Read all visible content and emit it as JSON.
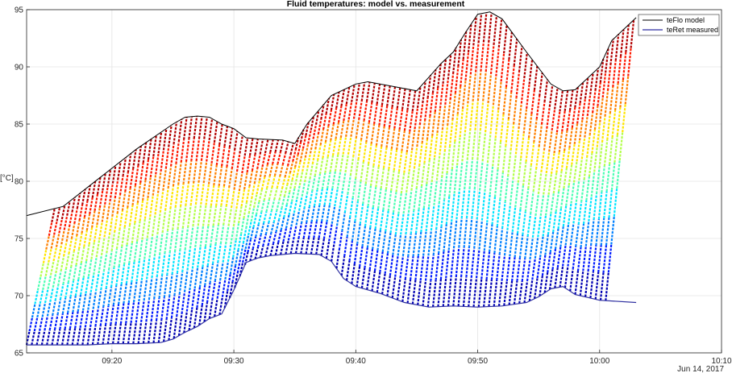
{
  "chart_data": {
    "type": "line",
    "title": "Fluid temperatures: model vs. measurement",
    "ylabel": "[°C]",
    "xlabel": "",
    "date_label": "Jun 14, 2017",
    "ylim": [
      65,
      95
    ],
    "xlim": [
      "09:13",
      "10:10"
    ],
    "x_ticks": [
      "09:20",
      "09:30",
      "09:40",
      "09:50",
      "10:00",
      "10:10"
    ],
    "y_ticks": [
      65,
      70,
      75,
      80,
      85,
      90,
      95
    ],
    "grid": true,
    "legend_position": "top-right",
    "series": [
      {
        "name": "teFlo model",
        "color": "#000000",
        "x": [
          "09:13",
          "09:16",
          "09:19",
          "09:22",
          "09:25",
          "09:26",
          "09:27",
          "09:28",
          "09:29",
          "09:30",
          "09:31",
          "09:32",
          "09:34",
          "09:35",
          "09:36",
          "09:38",
          "09:40",
          "09:41",
          "09:43",
          "09:45",
          "09:47",
          "09:48",
          "09:49",
          "09:50",
          "09:51",
          "09:52",
          "09:54",
          "09:56",
          "09:57",
          "09:58",
          "10:00",
          "10:01",
          "10:03"
        ],
        "values": [
          77.0,
          77.8,
          80.3,
          82.8,
          85.0,
          85.6,
          85.7,
          85.6,
          85.0,
          84.6,
          83.8,
          83.7,
          83.6,
          83.3,
          85.0,
          87.5,
          88.5,
          88.7,
          88.3,
          87.9,
          90.3,
          91.3,
          93.0,
          94.6,
          94.8,
          94.2,
          91.3,
          88.5,
          87.9,
          88.0,
          90.0,
          92.3,
          94.3
        ]
      },
      {
        "name": "teRet measured",
        "color": "#2e2fa0",
        "x": [
          "09:13",
          "09:16",
          "09:18",
          "09:20",
          "09:22",
          "09:24",
          "09:25",
          "09:26",
          "09:27",
          "09:28",
          "09:29",
          "09:30",
          "09:31",
          "09:32",
          "09:33",
          "09:35",
          "09:37",
          "09:38",
          "09:39",
          "09:40",
          "09:42",
          "09:44",
          "09:46",
          "09:48",
          "09:50",
          "09:52",
          "09:54",
          "09:55",
          "09:56",
          "09:57",
          "09:58",
          "10:00",
          "10:03"
        ],
        "values": [
          65.7,
          65.7,
          65.7,
          65.8,
          65.8,
          65.9,
          66.2,
          66.8,
          67.3,
          68.0,
          68.4,
          70.5,
          72.9,
          73.3,
          73.5,
          73.7,
          73.6,
          73.0,
          71.5,
          70.8,
          70.2,
          69.4,
          69.0,
          69.1,
          69.0,
          69.1,
          69.4,
          69.9,
          70.6,
          70.8,
          70.1,
          69.6,
          69.4
        ]
      }
    ]
  }
}
